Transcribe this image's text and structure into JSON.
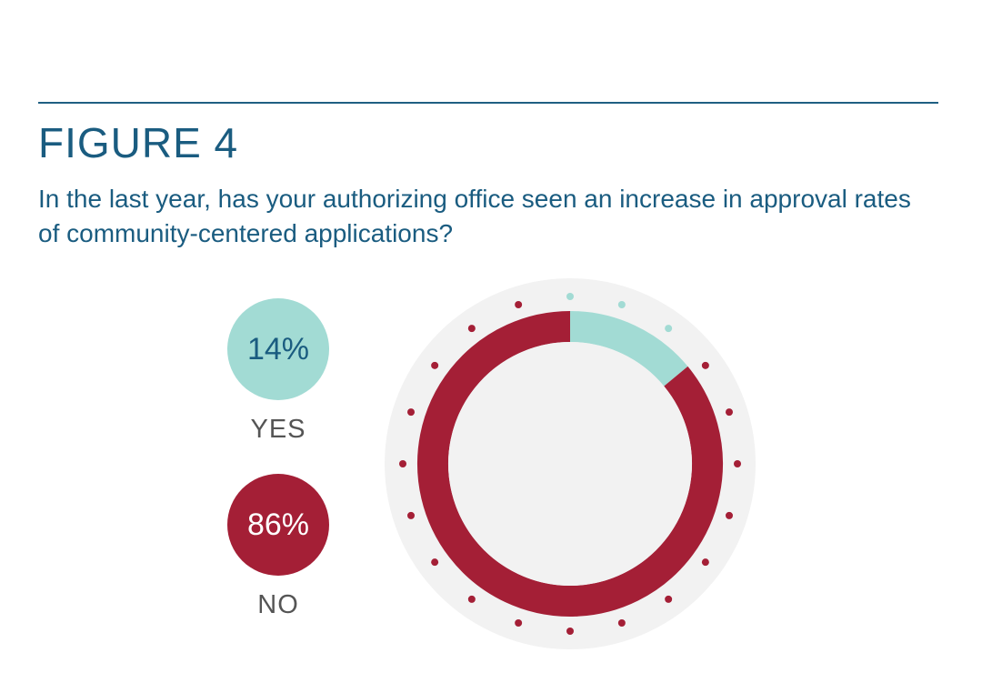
{
  "figure": {
    "title": "FIGURE 4",
    "question": "In the last year, has your authorizing office seen an increase in approval rates of community-centered applications?"
  },
  "legend": [
    {
      "pct_text": "14%",
      "label": "YES",
      "color": "#a2dbd4",
      "text_color": "#1a5c80"
    },
    {
      "pct_text": "86%",
      "label": "NO",
      "color": "#a41f36",
      "text_color": "#ffffff"
    }
  ],
  "chart_data": {
    "type": "pie",
    "style": "donut",
    "title": "",
    "categories": [
      "YES",
      "NO"
    ],
    "values": [
      14,
      86
    ],
    "colors": [
      "#a2dbd4",
      "#a41f36"
    ],
    "background_color": "#f2f2f2",
    "dot_ring": {
      "count": 20,
      "yes_dots": 3
    }
  }
}
